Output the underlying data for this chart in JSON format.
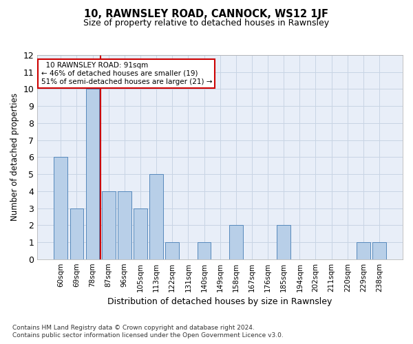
{
  "title": "10, RAWNSLEY ROAD, CANNOCK, WS12 1JF",
  "subtitle": "Size of property relative to detached houses in Rawnsley",
  "xlabel": "Distribution of detached houses by size in Rawnsley",
  "ylabel": "Number of detached properties",
  "footnote1": "Contains HM Land Registry data © Crown copyright and database right 2024.",
  "footnote2": "Contains public sector information licensed under the Open Government Licence v3.0.",
  "categories": [
    "60sqm",
    "69sqm",
    "78sqm",
    "87sqm",
    "96sqm",
    "105sqm",
    "113sqm",
    "122sqm",
    "131sqm",
    "140sqm",
    "149sqm",
    "158sqm",
    "167sqm",
    "176sqm",
    "185sqm",
    "194sqm",
    "202sqm",
    "211sqm",
    "220sqm",
    "229sqm",
    "238sqm"
  ],
  "values": [
    6,
    3,
    10,
    4,
    4,
    3,
    5,
    1,
    0,
    1,
    0,
    2,
    0,
    0,
    2,
    0,
    0,
    0,
    0,
    1,
    1
  ],
  "bar_color": "#b8cfe8",
  "bar_edge_color": "#5588bb",
  "grid_color": "#c8d4e4",
  "background_color": "#e8eef8",
  "vline_x": 2.5,
  "vline_color": "#cc0000",
  "annotation_text": "  10 RAWNSLEY ROAD: 91sqm\n← 46% of detached houses are smaller (19)\n51% of semi-detached houses are larger (21) →",
  "annotation_box_color": "#ffffff",
  "annotation_box_edge": "#cc0000",
  "ylim": [
    0,
    12
  ],
  "yticks": [
    0,
    1,
    2,
    3,
    4,
    5,
    6,
    7,
    8,
    9,
    10,
    11,
    12
  ]
}
